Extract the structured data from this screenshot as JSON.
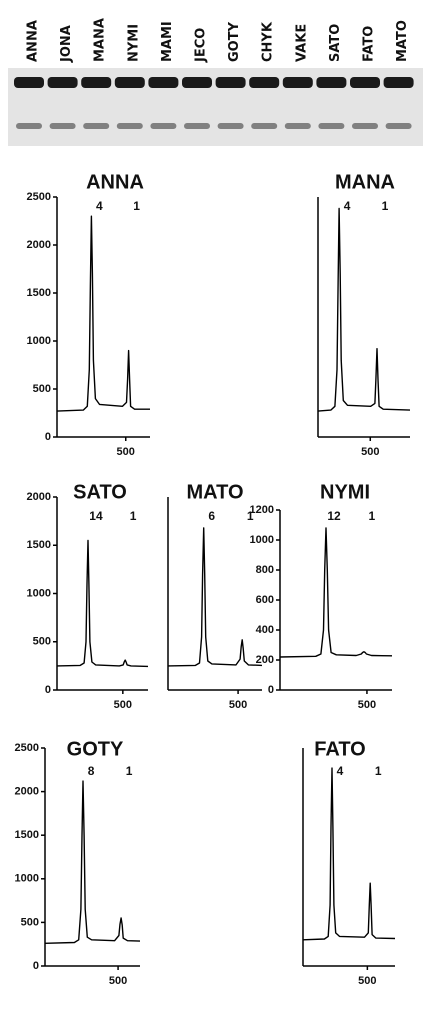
{
  "gel": {
    "lanes": [
      "ANNA",
      "JONA",
      "MANA",
      "NYMI",
      "MAMI",
      "JECO",
      "GOTY",
      "CHYK",
      "VAKE",
      "SATO",
      "FATO",
      "MATO"
    ]
  },
  "chart_data": [
    {
      "type": "line",
      "title": "ANNA",
      "annotations": [
        {
          "text": "4",
          "x": 330
        },
        {
          "text": "1",
          "x": 514
        }
      ],
      "xlim": [
        160,
        620
      ],
      "xticks": [
        500
      ],
      "ylim": [
        0,
        2500
      ],
      "yticks": [
        0,
        500,
        1000,
        1500,
        2000,
        2500
      ],
      "x": [
        160,
        290,
        310,
        320,
        325,
        330,
        335,
        340,
        350,
        370,
        484,
        504,
        509,
        514,
        519,
        524,
        544,
        620
      ],
      "values": [
        270,
        280,
        320,
        700,
        1600,
        2300,
        1700,
        800,
        400,
        340,
        320,
        360,
        600,
        900,
        600,
        320,
        290,
        290
      ]
    },
    {
      "type": "line",
      "title": "MANA",
      "annotations": [
        {
          "text": "4",
          "x": 351
        },
        {
          "text": "1",
          "x": 532
        }
      ],
      "xlim": [
        250,
        690
      ],
      "xticks": [
        500
      ],
      "ylim": [
        0,
        2500
      ],
      "x": [
        250,
        311,
        331,
        341,
        346,
        351,
        356,
        361,
        371,
        391,
        502,
        522,
        527,
        532,
        537,
        542,
        562,
        690
      ],
      "values": [
        270,
        280,
        320,
        700,
        1600,
        2380,
        1700,
        800,
        380,
        330,
        320,
        350,
        600,
        920,
        600,
        320,
        290,
        280
      ]
    },
    {
      "type": "line",
      "title": "SATO",
      "annotations": [
        {
          "text": "14",
          "x": 320
        },
        {
          "text": "1",
          "x": 512
        }
      ],
      "xlim": [
        160,
        630
      ],
      "xticks": [
        500
      ],
      "ylim": [
        0,
        2000
      ],
      "yticks": [
        0,
        500,
        1000,
        1500,
        2000
      ],
      "x": [
        160,
        280,
        300,
        310,
        315,
        320,
        325,
        330,
        340,
        360,
        482,
        502,
        507,
        512,
        517,
        522,
        542,
        630
      ],
      "values": [
        250,
        255,
        280,
        500,
        1100,
        1550,
        1100,
        500,
        290,
        260,
        250,
        260,
        290,
        310,
        290,
        260,
        250,
        245
      ]
    },
    {
      "type": "line",
      "title": "MATO",
      "annotations": [
        {
          "text": "6",
          "x": 333
        },
        {
          "text": "1",
          "x": 520
        }
      ],
      "xlim": [
        160,
        616
      ],
      "xticks": [
        500
      ],
      "ylim": [
        0,
        2000
      ],
      "x": [
        160,
        293,
        313,
        323,
        328,
        333,
        338,
        343,
        353,
        373,
        490,
        510,
        515,
        520,
        525,
        530,
        550,
        616
      ],
      "values": [
        250,
        255,
        280,
        550,
        1200,
        1680,
        1200,
        550,
        300,
        270,
        260,
        320,
        450,
        520,
        430,
        300,
        260,
        255
      ]
    },
    {
      "type": "line",
      "title": "NYMI",
      "annotations": [
        {
          "text": "12",
          "x": 340
        },
        {
          "text": "1",
          "x": 488
        }
      ],
      "xlim": [
        160,
        598
      ],
      "xticks": [
        500
      ],
      "ylim": [
        0,
        1200
      ],
      "yticks": [
        0,
        200,
        400,
        600,
        800,
        1000,
        1200
      ],
      "x": [
        160,
        300,
        320,
        330,
        335,
        340,
        345,
        350,
        360,
        380,
        458,
        478,
        483,
        488,
        493,
        498,
        518,
        598
      ],
      "values": [
        220,
        225,
        240,
        400,
        800,
        1080,
        800,
        400,
        250,
        235,
        230,
        240,
        250,
        255,
        250,
        240,
        230,
        228
      ]
    },
    {
      "type": "line",
      "title": "GOTY",
      "annotations": [
        {
          "text": "8",
          "x": 337
        },
        {
          "text": "1",
          "x": 514
        }
      ],
      "xlim": [
        160,
        602
      ],
      "xticks": [
        500
      ],
      "ylim": [
        0,
        2500
      ],
      "yticks": [
        0,
        500,
        1000,
        1500,
        2000,
        2500
      ],
      "x": [
        160,
        297,
        317,
        327,
        332,
        337,
        342,
        347,
        357,
        377,
        484,
        504,
        509,
        514,
        519,
        524,
        544,
        602
      ],
      "values": [
        260,
        270,
        300,
        650,
        1500,
        2120,
        1500,
        650,
        330,
        300,
        290,
        350,
        480,
        550,
        470,
        320,
        290,
        285
      ]
    },
    {
      "type": "line",
      "title": "FATO",
      "annotations": [
        {
          "text": "4",
          "x": 313
        },
        {
          "text": "1",
          "x": 515
        }
      ],
      "xlim": [
        160,
        646
      ],
      "xticks": [
        500
      ],
      "ylim": [
        0,
        2500
      ],
      "x": [
        160,
        273,
        293,
        303,
        308,
        313,
        318,
        323,
        333,
        353,
        485,
        505,
        510,
        515,
        520,
        525,
        545,
        646
      ],
      "values": [
        300,
        310,
        340,
        700,
        1600,
        2270,
        1600,
        700,
        380,
        340,
        330,
        380,
        700,
        950,
        700,
        360,
        320,
        315
      ]
    }
  ]
}
